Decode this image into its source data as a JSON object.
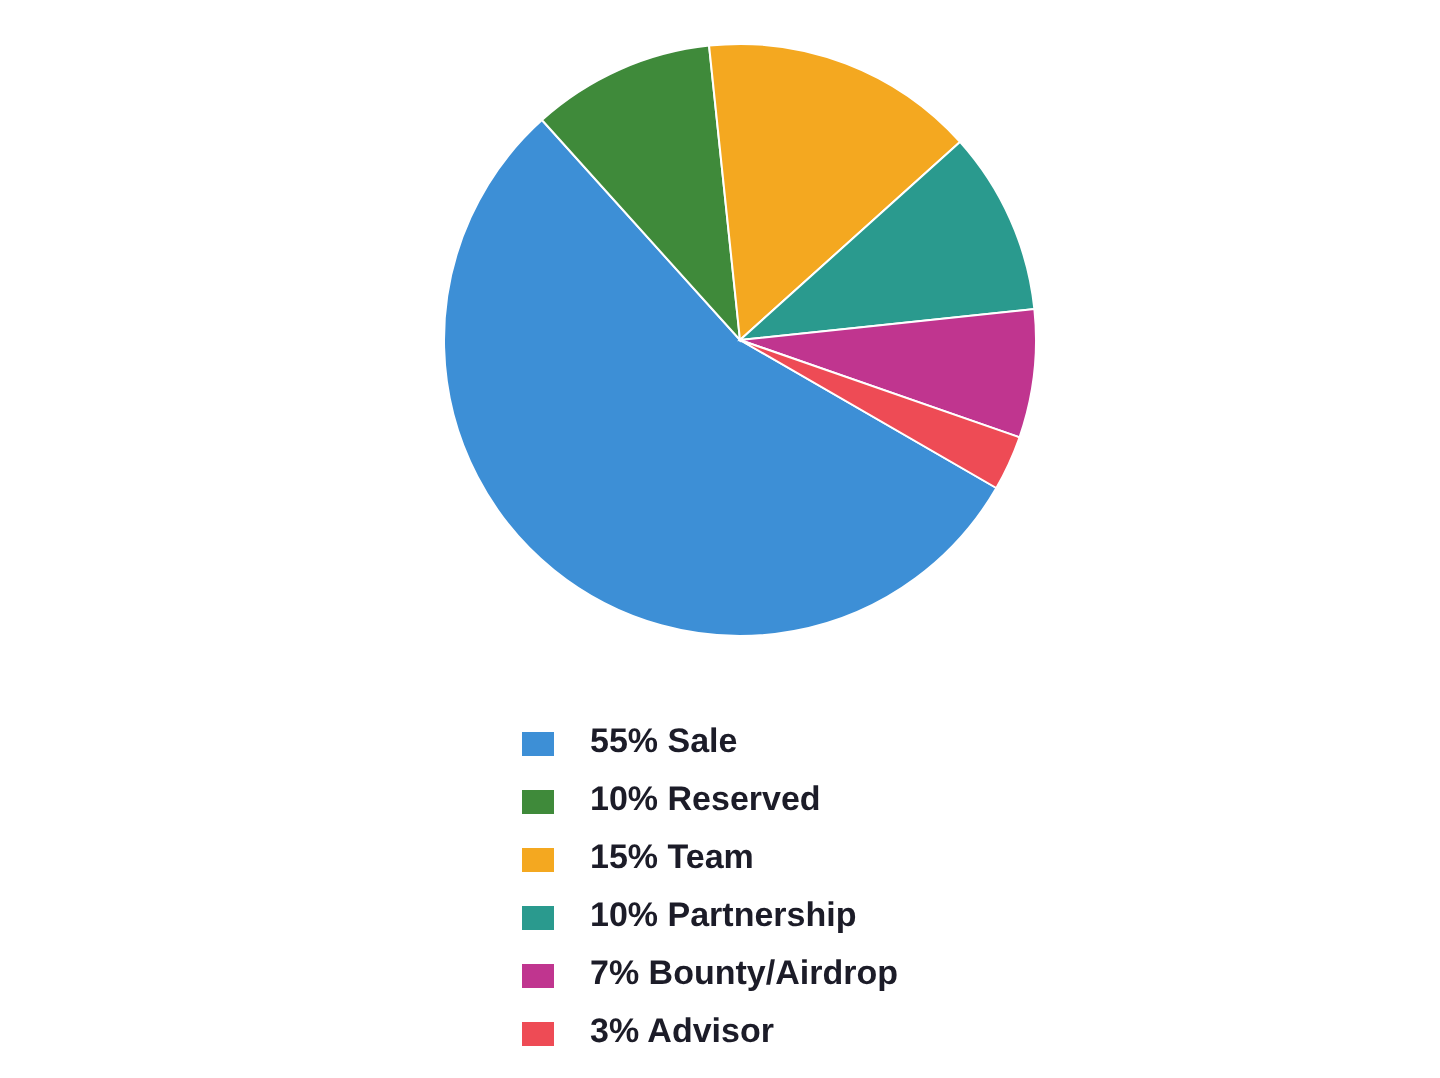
{
  "chart_data": {
    "type": "pie",
    "categories": [
      "55% Sale",
      "10% Reserved",
      "15% Team",
      "10% Partnership",
      "7% Bounty/Airdrop",
      "3% Advisor"
    ],
    "values": [
      55,
      10,
      15,
      10,
      7,
      3
    ],
    "colors": [
      "#3d8fd6",
      "#3f8a3a",
      "#f4a820",
      "#2a9a8e",
      "#c0358f",
      "#ee4b55"
    ],
    "legend": "bottom"
  }
}
